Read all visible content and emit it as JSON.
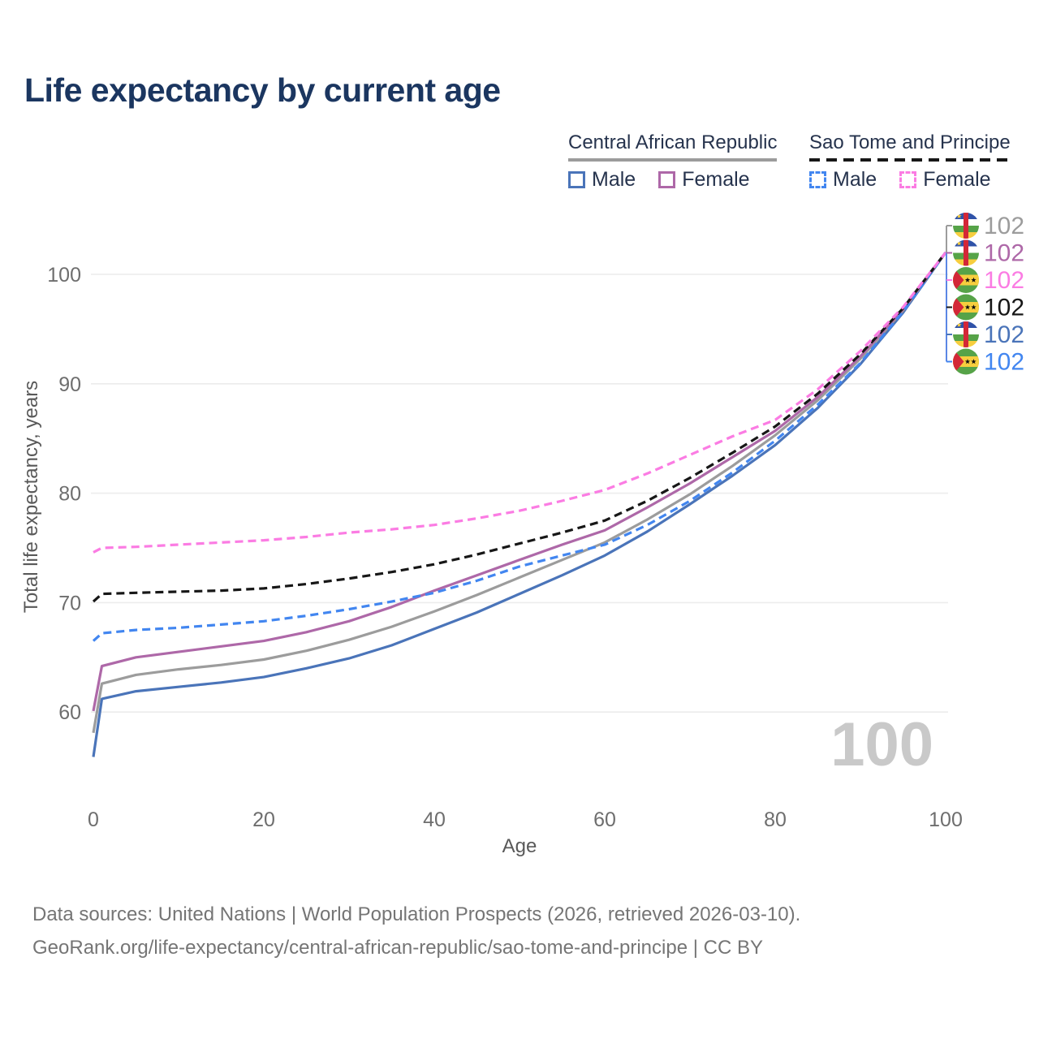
{
  "title": "Life expectancy by current age",
  "legend": {
    "groups": [
      {
        "id": "car",
        "title": "Central African Republic",
        "underline_style": "solid",
        "underline_color": "#9c9c9c",
        "items": [
          {
            "id": "car-male",
            "label": "Male",
            "color": "#4a74b9",
            "dash": false
          },
          {
            "id": "car-female",
            "label": "Female",
            "color": "#ae68a8",
            "dash": false
          }
        ]
      },
      {
        "id": "stp",
        "title": "Sao Tome and Principe",
        "underline_style": "dashed",
        "underline_color": "#171717",
        "items": [
          {
            "id": "stp-male",
            "label": "Male",
            "color": "#4286f0",
            "dash": true
          },
          {
            "id": "stp-female",
            "label": "Female",
            "color": "#fb7ce3",
            "dash": true
          }
        ]
      }
    ]
  },
  "chart_data": {
    "type": "line",
    "title": "Life expectancy by current age",
    "xlabel": "Age",
    "ylabel": "Total life expectancy, years",
    "x_ticks": [
      0,
      20,
      40,
      60,
      80,
      100
    ],
    "y_ticks": [
      60,
      70,
      80,
      90,
      100
    ],
    "xlim": [
      0,
      100
    ],
    "ylim": [
      55,
      103
    ],
    "grid": "horizontal-only",
    "legend_position": "top-right",
    "watermark": "100",
    "x": [
      0,
      1,
      5,
      10,
      15,
      20,
      25,
      30,
      35,
      40,
      45,
      50,
      55,
      60,
      65,
      70,
      75,
      80,
      85,
      90,
      95,
      100
    ],
    "series": [
      {
        "id": "car-male",
        "name": "Central African Republic Male",
        "color": "#4a74b9",
        "dash": false,
        "values": [
          55.9,
          61.2,
          61.9,
          62.3,
          62.7,
          63.2,
          64.0,
          64.9,
          66.1,
          67.6,
          69.1,
          70.8,
          72.5,
          74.3,
          76.5,
          79.0,
          81.6,
          84.4,
          87.8,
          91.8,
          96.5,
          102
        ]
      },
      {
        "id": "car-average",
        "name": "Central African Republic Average",
        "color": "#9c9c9c",
        "dash": false,
        "values": [
          58.1,
          62.6,
          63.4,
          63.9,
          64.3,
          64.8,
          65.6,
          66.6,
          67.8,
          69.2,
          70.7,
          72.3,
          73.9,
          75.5,
          77.6,
          79.9,
          82.5,
          85.3,
          88.5,
          92.3,
          96.7,
          102
        ]
      },
      {
        "id": "car-female",
        "name": "Central African Republic Female",
        "color": "#ae68a8",
        "dash": false,
        "values": [
          60.1,
          64.2,
          65.0,
          65.5,
          66.0,
          66.5,
          67.3,
          68.3,
          69.6,
          71.1,
          72.5,
          73.9,
          75.3,
          76.6,
          78.7,
          80.9,
          83.3,
          85.7,
          88.8,
          92.5,
          96.8,
          102
        ]
      },
      {
        "id": "stp-male",
        "name": "Sao Tome and Principe Male",
        "color": "#4286f0",
        "dash": true,
        "values": [
          66.5,
          67.2,
          67.5,
          67.7,
          68.0,
          68.3,
          68.8,
          69.4,
          70.1,
          70.9,
          72.0,
          73.3,
          74.3,
          75.3,
          77.1,
          79.3,
          81.9,
          84.8,
          88.1,
          91.9,
          96.6,
          102
        ]
      },
      {
        "id": "stp-average",
        "name": "Sao Tome and Principe Average",
        "color": "#171717",
        "dash": true,
        "values": [
          70.1,
          70.8,
          70.9,
          71.0,
          71.1,
          71.3,
          71.7,
          72.2,
          72.8,
          73.5,
          74.4,
          75.4,
          76.4,
          77.5,
          79.3,
          81.4,
          83.7,
          86.1,
          89.1,
          92.7,
          96.9,
          102
        ]
      },
      {
        "id": "stp-female",
        "name": "Sao Tome and Principe Female",
        "color": "#fb7ce3",
        "dash": true,
        "values": [
          74.6,
          75.0,
          75.1,
          75.3,
          75.5,
          75.7,
          76.0,
          76.4,
          76.7,
          77.1,
          77.7,
          78.4,
          79.3,
          80.3,
          81.8,
          83.5,
          85.2,
          86.7,
          89.5,
          93.0,
          97.0,
          102
        ]
      }
    ],
    "end_labels": [
      {
        "value": "102",
        "flag": "car",
        "series": "car-average",
        "color": "#9c9c9c"
      },
      {
        "value": "102",
        "flag": "car",
        "series": "car-female",
        "color": "#ae68a8"
      },
      {
        "value": "102",
        "flag": "stp",
        "series": "stp-female",
        "color": "#fb7ce3"
      },
      {
        "value": "102",
        "flag": "stp",
        "series": "stp-average",
        "color": "#171717"
      },
      {
        "value": "102",
        "flag": "car",
        "series": "car-male",
        "color": "#4a74b9"
      },
      {
        "value": "102",
        "flag": "stp",
        "series": "stp-male",
        "color": "#4286f0"
      }
    ]
  },
  "footer": {
    "line1": "Data sources: United Nations | World Population Prospects (2026, retrieved 2026-03-10).",
    "line2": "GeoRank.org/life-expectancy/central-african-republic/sao-tome-and-principe | CC BY"
  }
}
